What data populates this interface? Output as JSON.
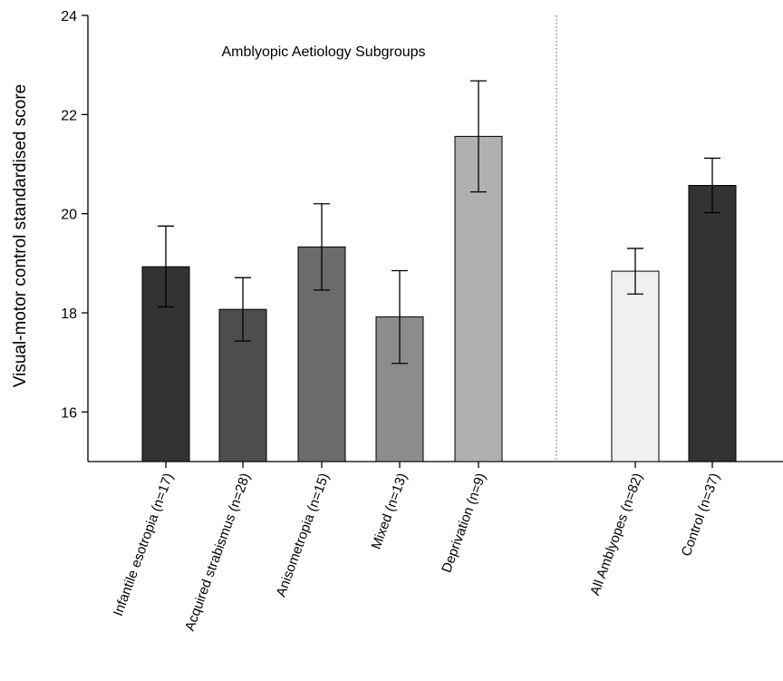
{
  "chart_data": {
    "type": "bar",
    "annotation": "Amblyopic Aetiology Subgroups",
    "ylabel": "Visual-motor control  standardised score",
    "xlabel": "",
    "ylim": [
      15,
      24
    ],
    "yticks": [
      16,
      18,
      20,
      22,
      24
    ],
    "grid": false,
    "categories": [
      "Infantile esotropia (n=17)",
      "Acquired strabismus (n=28)",
      "Anisometropia (n=15)",
      "Mixed (n=13)",
      "Deprivation (n=9)",
      "All Amblyopes (n=82)",
      "Control (n=37)"
    ],
    "values": [
      18.93,
      18.07,
      19.33,
      17.92,
      21.56,
      18.84,
      20.57
    ],
    "error_low": [
      18.12,
      17.43,
      18.46,
      16.98,
      20.44,
      18.38,
      20.02
    ],
    "error_high": [
      19.75,
      18.71,
      20.2,
      18.85,
      22.68,
      19.3,
      21.12
    ],
    "bar_colors": [
      "#333333",
      "#4d4d4d",
      "#6b6b6b",
      "#8c8c8c",
      "#b0b0b0",
      "#f0f0f0",
      "#333333"
    ],
    "separator": "dotted line between subgroups and summary groups"
  }
}
